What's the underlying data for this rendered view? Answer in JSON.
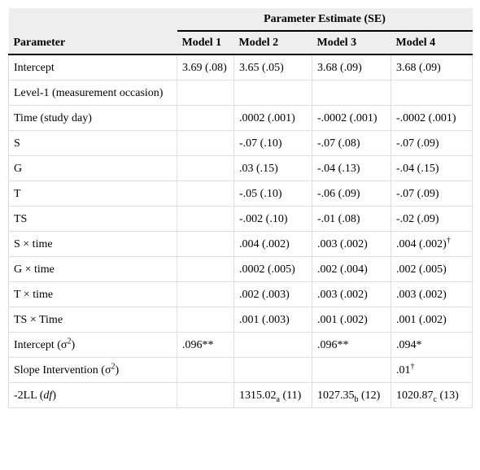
{
  "table": {
    "group_header": "Parameter Estimate (SE)",
    "columns": [
      "Parameter",
      "Model 1",
      "Model 2",
      "Model 3",
      "Model 4"
    ],
    "rows": [
      {
        "parameter": [
          "Intercept"
        ],
        "cells": [
          [
            "3.69 (.08)"
          ],
          [
            "3.65 (.05)"
          ],
          [
            "3.68 (.09)"
          ],
          [
            "3.68 (.09)"
          ]
        ]
      },
      {
        "parameter": [
          "Level-1 (measurement occasion)"
        ],
        "cells": [
          null,
          null,
          null,
          null
        ]
      },
      {
        "parameter": [
          "Time (study day)"
        ],
        "cells": [
          null,
          [
            ".0002 (.001)"
          ],
          [
            "-.0002 (.001)"
          ],
          [
            "-.0002 (.001)"
          ]
        ]
      },
      {
        "parameter": [
          "S"
        ],
        "cells": [
          null,
          [
            "-.07 (.10)"
          ],
          [
            "-.07 (.08)"
          ],
          [
            "-.07 (.09)"
          ]
        ]
      },
      {
        "parameter": [
          "G"
        ],
        "cells": [
          null,
          [
            ".03 (.15)"
          ],
          [
            "-.04 (.13)"
          ],
          [
            "-.04 (.15)"
          ]
        ]
      },
      {
        "parameter": [
          "T"
        ],
        "cells": [
          null,
          [
            "-.05 (.10)"
          ],
          [
            "-.06 (.09)"
          ],
          [
            "-.07 (.09)"
          ]
        ]
      },
      {
        "parameter": [
          "TS"
        ],
        "cells": [
          null,
          [
            "-.002 (.10)"
          ],
          [
            "-.01 (.08)"
          ],
          [
            "-.02 (.09)"
          ]
        ]
      },
      {
        "parameter": [
          "S × time"
        ],
        "cells": [
          null,
          [
            ".004 (.002)"
          ],
          [
            ".003 (.002)"
          ],
          [
            ".004 (.002)",
            {
              "sup": "†"
            }
          ]
        ]
      },
      {
        "parameter": [
          "G × time"
        ],
        "cells": [
          null,
          [
            ".0002 (.005)"
          ],
          [
            ".002 (.004)"
          ],
          [
            ".002 (.005)"
          ]
        ]
      },
      {
        "parameter": [
          "T × time"
        ],
        "cells": [
          null,
          [
            ".002 (.003)"
          ],
          [
            ".003 (.002)"
          ],
          [
            ".003 (.002)"
          ]
        ]
      },
      {
        "parameter": [
          "TS × Time"
        ],
        "cells": [
          null,
          [
            ".001 (.003)"
          ],
          [
            ".001 (.002)"
          ],
          [
            ".001 (.002)"
          ]
        ]
      },
      {
        "parameter": [
          "Intercept (σ",
          {
            "sup": "2"
          },
          ")"
        ],
        "cells": [
          [
            ".096**"
          ],
          null,
          [
            ".096**"
          ],
          [
            ".094*"
          ]
        ]
      },
      {
        "parameter": [
          "Slope Intervention (σ",
          {
            "sup": "2"
          },
          ")"
        ],
        "cells": [
          null,
          null,
          null,
          [
            ".01",
            {
              "sup": "†"
            }
          ]
        ]
      },
      {
        "parameter": [
          "-2LL (",
          {
            "i": "df"
          },
          ")"
        ],
        "cells": [
          null,
          [
            "1315.02",
            {
              "sub": "a"
            },
            " (11)"
          ],
          [
            "1027.35",
            {
              "sub": "b"
            },
            " (12)"
          ],
          [
            "1020.87",
            {
              "sub": "c"
            },
            " (13)"
          ]
        ]
      }
    ]
  }
}
